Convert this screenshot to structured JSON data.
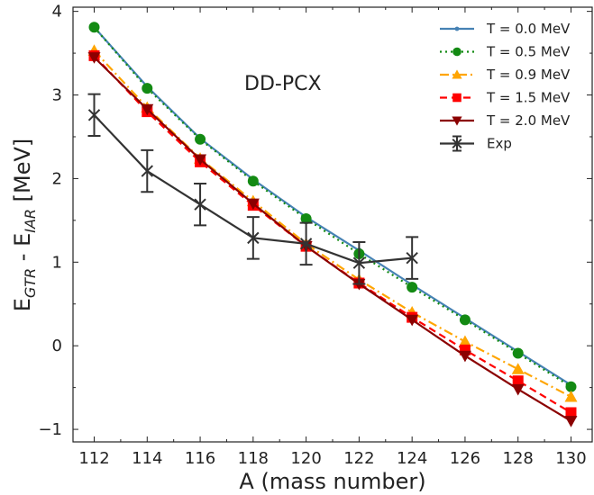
{
  "chart_data": {
    "type": "line",
    "annotation": "DD-PCX",
    "xlabel": "A (mass number)",
    "ylabel": {
      "main": "E",
      "sub1": "GTR",
      "mid": " - E",
      "sub2": "IAR",
      "unit": " [MeV]"
    },
    "xlim": [
      111.2,
      130.8
    ],
    "ylim": [
      -1.15,
      4.05
    ],
    "x_ticks": [
      112,
      114,
      116,
      118,
      120,
      122,
      124,
      126,
      128,
      130
    ],
    "y_ticks": [
      -1,
      0,
      1,
      2,
      3,
      4
    ],
    "legend_position": "top-right",
    "series": [
      {
        "name": "T = 0.0 MeV",
        "color": "#4682b4",
        "dash": "",
        "marker": "point",
        "x": [
          112,
          114,
          116,
          118,
          120,
          122,
          124,
          126,
          128,
          130
        ],
        "y": [
          3.81,
          3.1,
          2.48,
          1.99,
          1.54,
          1.14,
          0.73,
          0.33,
          -0.07,
          -0.47
        ]
      },
      {
        "name": "T = 0.5 MeV",
        "color": "#138a13",
        "dash": "2,4",
        "marker": "circle",
        "x": [
          112,
          114,
          116,
          118,
          120,
          122,
          124,
          126,
          128,
          130
        ],
        "y": [
          3.81,
          3.08,
          2.47,
          1.97,
          1.52,
          1.1,
          0.7,
          0.31,
          -0.09,
          -0.49
        ]
      },
      {
        "name": "T = 0.9 MeV",
        "color": "#ffa500",
        "dash": "10,4,2,4",
        "marker": "triangle-up",
        "x": [
          112,
          114,
          116,
          118,
          120,
          122,
          124,
          126,
          128,
          130
        ],
        "y": [
          3.53,
          2.85,
          2.24,
          1.73,
          1.22,
          0.79,
          0.4,
          0.05,
          -0.28,
          -0.61
        ]
      },
      {
        "name": "T = 1.5 MeV",
        "color": "#ff0000",
        "dash": "8,5",
        "marker": "square",
        "x": [
          112,
          114,
          116,
          118,
          120,
          122,
          124,
          126,
          128,
          130
        ],
        "y": [
          3.47,
          2.8,
          2.2,
          1.68,
          1.19,
          0.75,
          0.34,
          -0.05,
          -0.42,
          -0.8
        ]
      },
      {
        "name": "T = 2.0 MeV",
        "color": "#8b0000",
        "dash": "",
        "marker": "triangle-down",
        "x": [
          112,
          114,
          116,
          118,
          120,
          122,
          124,
          126,
          128,
          130
        ],
        "y": [
          3.45,
          2.83,
          2.23,
          1.7,
          1.19,
          0.74,
          0.31,
          -0.12,
          -0.52,
          -0.9
        ]
      },
      {
        "name": "Exp",
        "color": "#333333",
        "dash": "",
        "marker": "x",
        "x": [
          112,
          114,
          116,
          118,
          120,
          122,
          124
        ],
        "y": [
          2.76,
          2.09,
          1.69,
          1.29,
          1.22,
          0.99,
          1.05
        ],
        "yerr": [
          0.25,
          0.25,
          0.25,
          0.25,
          0.25,
          0.25,
          0.25
        ]
      }
    ]
  }
}
